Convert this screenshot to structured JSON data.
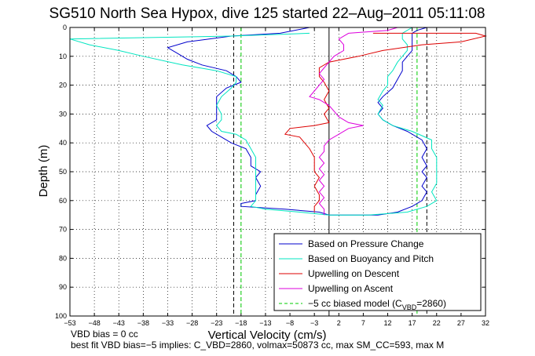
{
  "chart_data": {
    "type": "line",
    "title": "SG510 North Sea Hypox, dive 125 started 22–Aug–2011 05:11:08",
    "xlabel": "Vertical Velocity (cm/s)",
    "ylabel": "Depth (m)",
    "xlim": [
      -53,
      32
    ],
    "ylim": [
      0,
      100
    ],
    "y_reversed": true,
    "grid": true,
    "legend_position": "bottom-right",
    "xticks": [
      -53,
      -48,
      -43,
      -38,
      -33,
      -28,
      -23,
      -18,
      -13,
      -8,
      -3,
      2,
      7,
      12,
      17,
      22,
      27,
      32
    ],
    "yticks": [
      0,
      10,
      20,
      30,
      40,
      50,
      60,
      70,
      80,
      90,
      100
    ],
    "colors": {
      "pressure": "#0000cc",
      "buoyancy": "#00e5c0",
      "descent": "#dd0000",
      "ascent": "#dd00dd",
      "biased": "#00cc00",
      "reference": "#000000"
    },
    "series": [
      {
        "name": "Based on Pressure Change",
        "key": "pressure",
        "points": [
          [
            -4,
            0
          ],
          [
            -10,
            2
          ],
          [
            -20,
            3
          ],
          [
            -29,
            5
          ],
          [
            -33,
            7
          ],
          [
            -31,
            9
          ],
          [
            -29,
            11
          ],
          [
            -26,
            13
          ],
          [
            -21,
            15
          ],
          [
            -19,
            17
          ],
          [
            -18,
            19
          ],
          [
            -21,
            21
          ],
          [
            -23,
            24
          ],
          [
            -23,
            27
          ],
          [
            -23,
            30
          ],
          [
            -23,
            32
          ],
          [
            -25,
            34
          ],
          [
            -24,
            36
          ],
          [
            -22,
            38
          ],
          [
            -20,
            40
          ],
          [
            -17,
            42
          ],
          [
            -16,
            45
          ],
          [
            -16,
            48
          ],
          [
            -14,
            50
          ],
          [
            -15,
            52
          ],
          [
            -14,
            55
          ],
          [
            -15,
            58
          ],
          [
            -15,
            60
          ],
          [
            -18,
            61
          ],
          [
            -18,
            62
          ],
          [
            -9,
            63
          ],
          [
            -2,
            64
          ],
          [
            0,
            65
          ],
          [
            2,
            65
          ],
          [
            10,
            65
          ],
          [
            14,
            64
          ],
          [
            17,
            62
          ],
          [
            19,
            60
          ],
          [
            20,
            57
          ],
          [
            19,
            55
          ],
          [
            20,
            52
          ],
          [
            19,
            50
          ],
          [
            20,
            48
          ],
          [
            19,
            45
          ],
          [
            20,
            42
          ],
          [
            19,
            39
          ],
          [
            16,
            36
          ],
          [
            13,
            34
          ],
          [
            11,
            32
          ],
          [
            10,
            30
          ],
          [
            11,
            28
          ],
          [
            10,
            26
          ],
          [
            11,
            24
          ],
          [
            13,
            21
          ],
          [
            14,
            18
          ],
          [
            15,
            15
          ],
          [
            15,
            12
          ],
          [
            16,
            10
          ],
          [
            17,
            8
          ],
          [
            17,
            6
          ],
          [
            17,
            4
          ],
          [
            17,
            2
          ],
          [
            18,
            1
          ],
          [
            20,
            0
          ]
        ]
      },
      {
        "name": "Based on Buoyancy and Pitch",
        "key": "buoyancy",
        "points": [
          [
            -4,
            2
          ],
          [
            -20,
            3
          ],
          [
            -53,
            4
          ],
          [
            -49,
            6
          ],
          [
            -43,
            8
          ],
          [
            -38,
            10
          ],
          [
            -30,
            13
          ],
          [
            -23,
            15
          ],
          [
            -19,
            17
          ],
          [
            -19,
            19
          ],
          [
            -20,
            21
          ],
          [
            -22,
            24
          ],
          [
            -23,
            27
          ],
          [
            -22,
            30
          ],
          [
            -22,
            32
          ],
          [
            -23,
            34
          ],
          [
            -22,
            36
          ],
          [
            -19,
            37
          ],
          [
            -17,
            39
          ],
          [
            -16,
            42
          ],
          [
            -15,
            45
          ],
          [
            -15,
            48
          ],
          [
            -15,
            51
          ],
          [
            -15,
            54
          ],
          [
            -15,
            57
          ],
          [
            -15,
            60
          ],
          [
            -16,
            62
          ],
          [
            -13,
            63
          ],
          [
            -6,
            64
          ],
          [
            0,
            65
          ],
          [
            8,
            65
          ],
          [
            16,
            64
          ],
          [
            20,
            62
          ],
          [
            22,
            60
          ],
          [
            21,
            57
          ],
          [
            22,
            54
          ],
          [
            22,
            51
          ],
          [
            22,
            48
          ],
          [
            22,
            45
          ],
          [
            21,
            42
          ],
          [
            21,
            39
          ],
          [
            17,
            36
          ],
          [
            13,
            34
          ],
          [
            11,
            32
          ],
          [
            10,
            30
          ],
          [
            11,
            27
          ],
          [
            10,
            25
          ],
          [
            11,
            22
          ],
          [
            12,
            20
          ],
          [
            12,
            17
          ],
          [
            13,
            15
          ],
          [
            14,
            12
          ],
          [
            15,
            10
          ],
          [
            16,
            8
          ],
          [
            16,
            6
          ],
          [
            15,
            4
          ],
          [
            15,
            2
          ],
          [
            17,
            0
          ]
        ]
      },
      {
        "name": "Upwelling on Descent",
        "key": "descent",
        "points": [
          [
            9,
            2
          ],
          [
            19,
            2
          ],
          [
            30,
            2
          ],
          [
            32,
            3
          ],
          [
            27,
            5
          ],
          [
            19,
            6
          ],
          [
            11,
            8
          ],
          [
            6,
            10
          ],
          [
            3,
            11
          ],
          [
            0,
            12
          ],
          [
            -2,
            14
          ],
          [
            -2,
            17
          ],
          [
            -1,
            19
          ],
          [
            0,
            22
          ],
          [
            -1,
            25
          ],
          [
            0,
            28
          ],
          [
            -1,
            30
          ],
          [
            0,
            33
          ],
          [
            -3,
            34
          ],
          [
            -8,
            35
          ],
          [
            -9,
            37
          ],
          [
            -6,
            38
          ],
          [
            -5,
            40
          ],
          [
            -4,
            42
          ],
          [
            -3,
            45
          ],
          [
            -3,
            48
          ],
          [
            -3,
            50
          ],
          [
            -2,
            52
          ],
          [
            -3,
            55
          ],
          [
            -2,
            58
          ],
          [
            -2,
            60
          ],
          [
            -3,
            62
          ],
          [
            -3,
            64
          ]
        ]
      },
      {
        "name": "Upwelling on Ascent",
        "key": "ascent",
        "points": [
          [
            -1,
            65
          ],
          [
            -1,
            63
          ],
          [
            -2,
            61
          ],
          [
            -1,
            59
          ],
          [
            -2,
            57
          ],
          [
            -1,
            55
          ],
          [
            -2,
            53
          ],
          [
            -1,
            51
          ],
          [
            -2,
            49
          ],
          [
            -1,
            47
          ],
          [
            -2,
            45
          ],
          [
            -1,
            43
          ],
          [
            -1,
            41
          ],
          [
            0,
            39
          ],
          [
            2,
            37
          ],
          [
            4,
            35
          ],
          [
            7,
            34
          ],
          [
            4,
            33
          ],
          [
            2,
            31
          ],
          [
            1,
            29
          ],
          [
            0,
            27
          ],
          [
            -2,
            25
          ],
          [
            -4,
            24
          ],
          [
            -3,
            22
          ],
          [
            -2,
            20
          ],
          [
            -1,
            18
          ],
          [
            -2,
            16
          ],
          [
            -1,
            14
          ],
          [
            0,
            12
          ],
          [
            1,
            10
          ],
          [
            3,
            8
          ],
          [
            3,
            6
          ],
          [
            2,
            4
          ],
          [
            4,
            2
          ],
          [
            12,
            1
          ],
          [
            14,
            0
          ]
        ]
      }
    ],
    "reference_lines": [
      {
        "name": "-5 cc biased model (C_VBD=2860)",
        "key": "biased",
        "style": "dashed",
        "x": [
          -18,
          18
        ]
      },
      {
        "key": "reference",
        "style": "dashed",
        "x": [
          -19.5,
          20
        ]
      },
      {
        "key": "reference",
        "style": "solid",
        "x": [
          0
        ]
      }
    ],
    "legend": {
      "entries": [
        {
          "label": "Based on Pressure Change",
          "key": "pressure",
          "dashed": false
        },
        {
          "label": "Based on Buoyancy and Pitch",
          "key": "buoyancy",
          "dashed": false
        },
        {
          "label": "Upwelling on Descent",
          "key": "descent",
          "dashed": false
        },
        {
          "label": "Upwelling on Ascent",
          "key": "ascent",
          "dashed": false
        }
      ],
      "biased_entry": {
        "prefix": "−5 cc biased model (C",
        "sub": "VBD",
        "suffix": "=2860)"
      }
    },
    "footer": {
      "line1": "VBD bias = 0 cc",
      "line2": "best fit VBD bias=−5 implies: C_VBD=2860, volmax=50873 cc, max SM_CC=593, max M"
    }
  }
}
